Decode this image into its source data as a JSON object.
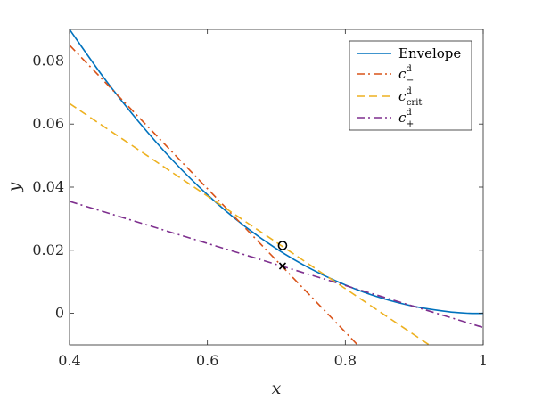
{
  "chart_data": {
    "type": "line",
    "xlabel": "x",
    "ylabel": "y",
    "xlim": [
      0.4,
      1.0
    ],
    "ylim": [
      -0.01,
      0.09
    ],
    "x_ticks": [
      "0.4",
      "0.6",
      "0.8",
      "1"
    ],
    "y_ticks": [
      "0",
      "0.02",
      "0.04",
      "0.06",
      "0.08"
    ],
    "grid": false,
    "legend_position": "top-right",
    "series": [
      {
        "name": "Envelope",
        "legend_main": "Envelope",
        "legend_sub": "",
        "legend_sup": "",
        "color": "#0072BD",
        "dash": "solid",
        "x": [
          0.4,
          0.45,
          0.5,
          0.55,
          0.6,
          0.65,
          0.7,
          0.75,
          0.8,
          0.85,
          0.9,
          0.95,
          0.98,
          1.0
        ],
        "y": [
          0.09,
          0.0746,
          0.0608,
          0.0484,
          0.0376,
          0.0283,
          0.0205,
          0.0141,
          0.009,
          0.005,
          0.0022,
          0.0005,
          0.0,
          0.0
        ]
      },
      {
        "name": "c_-^d",
        "legend_main": "c",
        "legend_sub": "−",
        "legend_sup": "d",
        "color": "#D95319",
        "dash": "dashdot",
        "x": [
          0.4,
          0.82
        ],
        "y": [
          0.085,
          -0.0105
        ]
      },
      {
        "name": "c_crit^d",
        "legend_main": "c",
        "legend_sub": "crit",
        "legend_sup": "d",
        "color": "#EDB120",
        "dash": "dashed",
        "x": [
          0.4,
          0.925
        ],
        "y": [
          0.0665,
          -0.0105
        ]
      },
      {
        "name": "c_+^d",
        "legend_main": "c",
        "legend_sub": "+",
        "legend_sup": "d",
        "color": "#7E2F8E",
        "dash": "dashdot",
        "x": [
          0.4,
          1.0
        ],
        "y": [
          0.0355,
          -0.0045
        ]
      }
    ],
    "markers": [
      {
        "name": "circle-point",
        "shape": "circle",
        "x": 0.709,
        "y": 0.0215
      },
      {
        "name": "cross-point",
        "shape": "cross",
        "x": 0.709,
        "y": 0.015
      }
    ]
  }
}
